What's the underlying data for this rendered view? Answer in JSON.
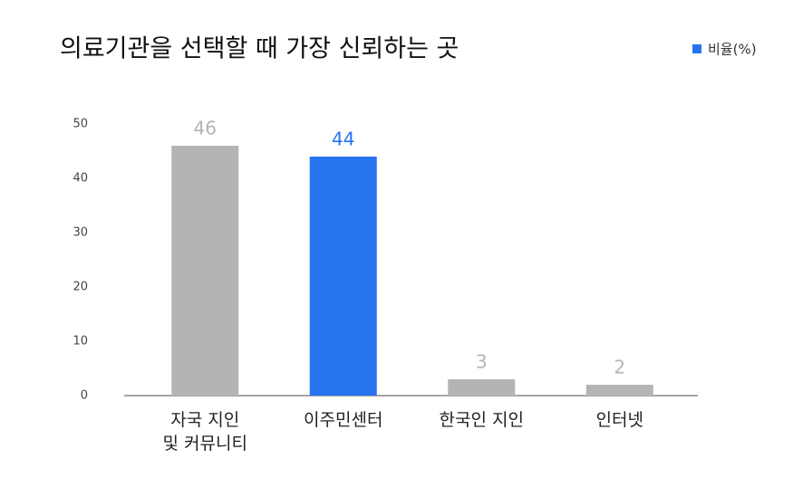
{
  "chart_data": {
    "type": "bar",
    "title": "의료기관을 선택할 때 가장 신뢰하는 곳",
    "categories": [
      "자국 지인\n및 커뮤니티",
      "이주민센터",
      "한국인 지인",
      "인터넷"
    ],
    "series": [
      {
        "name": "비율(%)",
        "color": "#2673f0",
        "values": [
          46,
          44,
          3,
          2
        ],
        "point_colors": [
          "#b4b4b4",
          "#2673f0",
          "#b4b4b4",
          "#b4b4b4"
        ]
      }
    ],
    "ylim": [
      0,
      50
    ],
    "yticks": [
      0,
      10,
      20,
      30,
      40,
      50
    ],
    "grid": false,
    "legend": "top-right"
  }
}
